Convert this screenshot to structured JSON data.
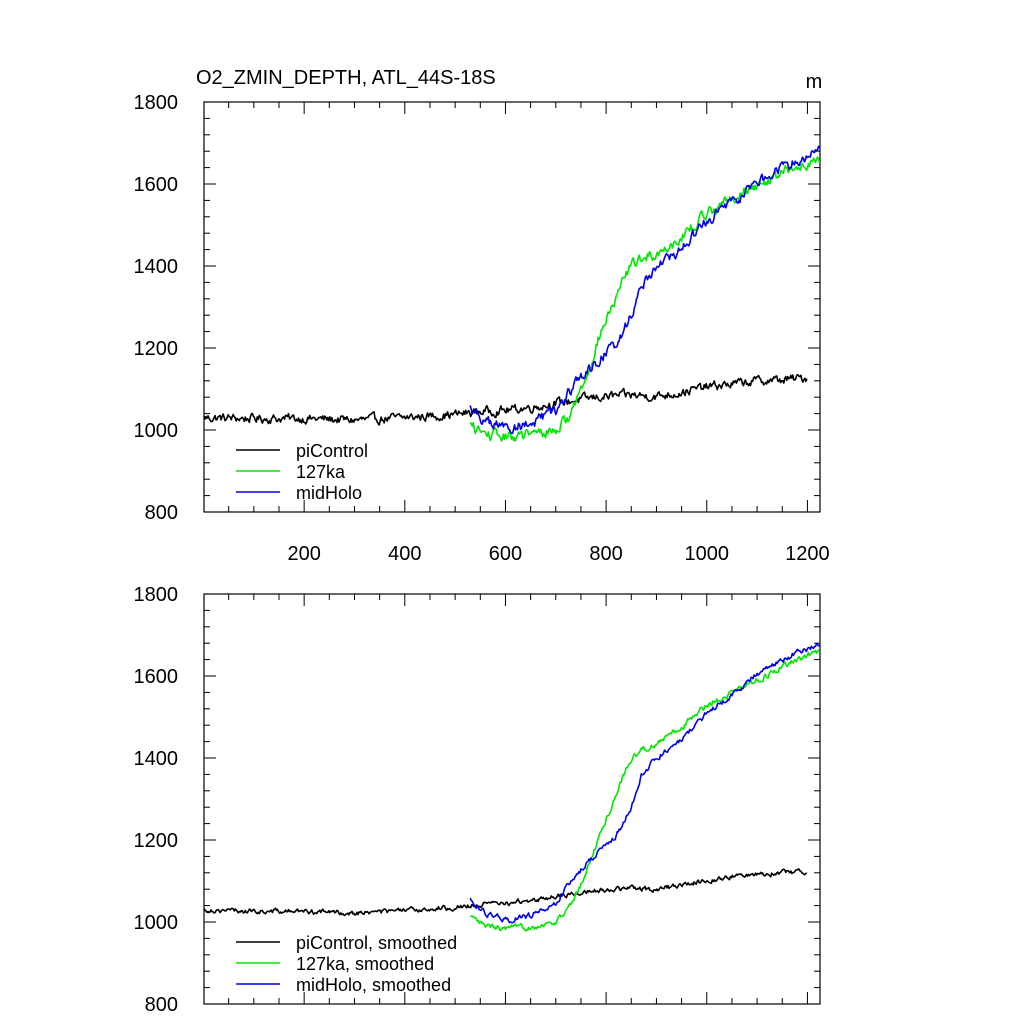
{
  "chart_data": [
    {
      "type": "line",
      "title": "O2_ZMIN_DEPTH, ATL_44S-18S",
      "units": "m",
      "xlim": [
        1,
        1225
      ],
      "ylim": [
        800,
        1800
      ],
      "xticks": [
        200,
        400,
        600,
        800,
        1000,
        1200
      ],
      "xtick_labels": [
        "200",
        "400",
        "600",
        "800",
        "1000",
        "1200"
      ],
      "yticks": [
        800,
        1000,
        1200,
        1400,
        1600,
        1800
      ],
      "ytick_labels": [
        "800",
        "1000",
        "1200",
        "1400",
        "1600",
        "1800"
      ],
      "legend_position": "bottom-left",
      "series": [
        {
          "name": "piControl",
          "color": "#000000",
          "noise": 9,
          "points": [
            [
              1,
              1030
            ],
            [
              100,
              1028
            ],
            [
              200,
              1028
            ],
            [
              300,
              1024
            ],
            [
              400,
              1030
            ],
            [
              500,
              1038
            ],
            [
              550,
              1045
            ],
            [
              600,
              1048
            ],
            [
              650,
              1055
            ],
            [
              700,
              1065
            ],
            [
              750,
              1075
            ],
            [
              800,
              1082
            ],
            [
              850,
              1085
            ],
            [
              900,
              1082
            ],
            [
              950,
              1092
            ],
            [
              1000,
              1105
            ],
            [
              1050,
              1112
            ],
            [
              1100,
              1120
            ],
            [
              1150,
              1122
            ],
            [
              1200,
              1128
            ]
          ]
        },
        {
          "name": "127ka",
          "color": "#00e600",
          "noise": 11,
          "points": [
            [
              530,
              1010
            ],
            [
              560,
              990
            ],
            [
              600,
              982
            ],
            [
              650,
              988
            ],
            [
              700,
              1000
            ],
            [
              730,
              1040
            ],
            [
              760,
              1130
            ],
            [
              790,
              1240
            ],
            [
              820,
              1320
            ],
            [
              845,
              1395
            ],
            [
              870,
              1420
            ],
            [
              900,
              1430
            ],
            [
              950,
              1470
            ],
            [
              1000,
              1530
            ],
            [
              1050,
              1565
            ],
            [
              1100,
              1595
            ],
            [
              1150,
              1625
            ],
            [
              1200,
              1650
            ],
            [
              1225,
              1660
            ]
          ]
        },
        {
          "name": "midHolo",
          "color": "#0000e6",
          "noise": 11,
          "points": [
            [
              530,
              1055
            ],
            [
              560,
              1020
            ],
            [
              600,
              1005
            ],
            [
              650,
              1015
            ],
            [
              700,
              1045
            ],
            [
              740,
              1115
            ],
            [
              780,
              1165
            ],
            [
              820,
              1210
            ],
            [
              850,
              1280
            ],
            [
              870,
              1355
            ],
            [
              900,
              1400
            ],
            [
              950,
              1440
            ],
            [
              1000,
              1510
            ],
            [
              1050,
              1555
            ],
            [
              1100,
              1605
            ],
            [
              1150,
              1640
            ],
            [
              1200,
              1670
            ],
            [
              1225,
              1685
            ]
          ]
        }
      ]
    },
    {
      "type": "line",
      "xlim": [
        1,
        1225
      ],
      "ylim": [
        800,
        1800
      ],
      "xticks": [
        200,
        400,
        600,
        800,
        1000,
        1200
      ],
      "yticks": [
        800,
        1000,
        1200,
        1400,
        1600,
        1800
      ],
      "ytick_labels": [
        "800",
        "1000",
        "1200",
        "1400",
        "1600",
        "1800"
      ],
      "legend_position": "bottom-left",
      "series": [
        {
          "name": "piControl, smoothed",
          "color": "#000000",
          "noise": 5,
          "points": [
            [
              1,
              1030
            ],
            [
              100,
              1026
            ],
            [
              200,
              1026
            ],
            [
              300,
              1022
            ],
            [
              400,
              1028
            ],
            [
              500,
              1036
            ],
            [
              550,
              1042
            ],
            [
              600,
              1046
            ],
            [
              650,
              1052
            ],
            [
              700,
              1062
            ],
            [
              750,
              1072
            ],
            [
              800,
              1080
            ],
            [
              850,
              1082
            ],
            [
              900,
              1080
            ],
            [
              950,
              1090
            ],
            [
              1000,
              1102
            ],
            [
              1050,
              1110
            ],
            [
              1100,
              1118
            ],
            [
              1150,
              1120
            ],
            [
              1200,
              1125
            ]
          ]
        },
        {
          "name": "127ka, smoothed",
          "color": "#00e600",
          "noise": 6,
          "points": [
            [
              530,
              1010
            ],
            [
              560,
              990
            ],
            [
              600,
              982
            ],
            [
              650,
              988
            ],
            [
              700,
              1000
            ],
            [
              730,
              1040
            ],
            [
              760,
              1120
            ],
            [
              790,
              1220
            ],
            [
              820,
              1310
            ],
            [
              845,
              1390
            ],
            [
              870,
              1420
            ],
            [
              900,
              1435
            ],
            [
              950,
              1475
            ],
            [
              1000,
              1530
            ],
            [
              1050,
              1560
            ],
            [
              1100,
              1590
            ],
            [
              1150,
              1620
            ],
            [
              1200,
              1650
            ],
            [
              1225,
              1660
            ]
          ]
        },
        {
          "name": "midHolo, smoothed",
          "color": "#0000e6",
          "noise": 6,
          "points": [
            [
              530,
              1055
            ],
            [
              560,
              1020
            ],
            [
              600,
              1005
            ],
            [
              650,
              1015
            ],
            [
              700,
              1045
            ],
            [
              740,
              1115
            ],
            [
              780,
              1165
            ],
            [
              820,
              1210
            ],
            [
              850,
              1280
            ],
            [
              870,
              1355
            ],
            [
              900,
              1400
            ],
            [
              950,
              1445
            ],
            [
              1000,
              1510
            ],
            [
              1050,
              1555
            ],
            [
              1100,
              1605
            ],
            [
              1150,
              1640
            ],
            [
              1200,
              1668
            ],
            [
              1225,
              1680
            ]
          ]
        }
      ]
    }
  ]
}
